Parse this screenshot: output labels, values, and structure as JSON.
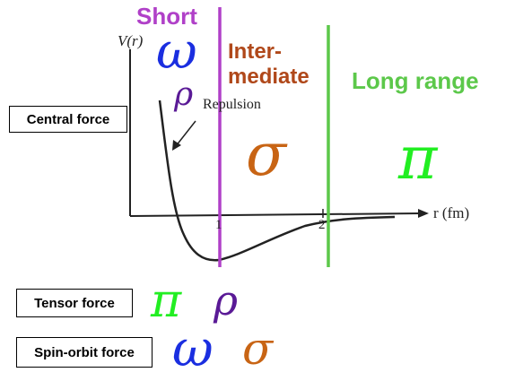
{
  "regions": {
    "short": "Short",
    "intermediate_line1": "Inter-",
    "intermediate_line2": "mediate",
    "long": "Long range"
  },
  "axes": {
    "ylabel": "V(r)",
    "xlabel": "r (fm)",
    "ticks": [
      "1",
      "2"
    ]
  },
  "annotation": {
    "repulsion": "Repulsion"
  },
  "forces": {
    "central": {
      "label": "Central force",
      "mesons": [
        "ω",
        "ρ",
        "σ",
        "π"
      ]
    },
    "tensor": {
      "label": "Tensor force",
      "mesons": [
        "π",
        "ρ"
      ]
    },
    "spin_orbit": {
      "label": "Spin-orbit force",
      "mesons": [
        "ω",
        "σ"
      ]
    }
  },
  "colors": {
    "short": "#b040c8",
    "intermediate": "#b0481a",
    "long": "#5cc84a",
    "pi": "#22ee22",
    "omega": "#1a2ee0",
    "rho": "#5a1a96",
    "sigma": "#c86414"
  }
}
